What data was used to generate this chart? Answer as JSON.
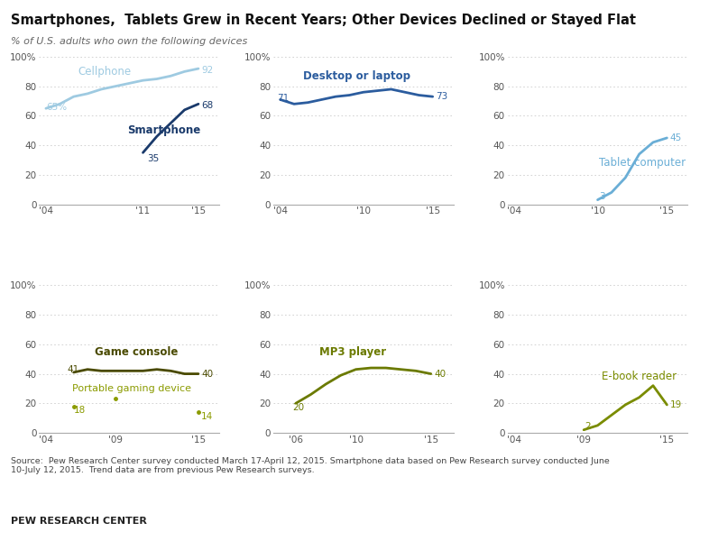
{
  "title": "Smartphones,  Tablets Grew in Recent Years; Other Devices Declined or Stayed Flat",
  "subtitle": "% of U.S. adults who own the following devices",
  "source_text": "Source:  Pew Research Center survey conducted March 17-April 12, 2015. Smartphone data based on Pew Research survey conducted June\n10-July 12, 2015.  Trend data are from previous Pew Research surveys.",
  "brand": "PEW RESEARCH CENTER",
  "cellphone": {
    "years": [
      2004,
      2005,
      2006,
      2007,
      2008,
      2009,
      2010,
      2011,
      2012,
      2013,
      2014,
      2015
    ],
    "values": [
      65,
      68,
      73,
      75,
      78,
      80,
      82,
      84,
      85,
      87,
      90,
      92
    ],
    "color": "#9ecae1",
    "label": "Cellphone"
  },
  "smartphone": {
    "years": [
      2011,
      2012,
      2013,
      2014,
      2015
    ],
    "values": [
      35,
      46,
      55,
      64,
      68
    ],
    "color": "#1a3a6b",
    "label": "Smartphone"
  },
  "desktop": {
    "years": [
      2004,
      2005,
      2006,
      2007,
      2008,
      2009,
      2010,
      2011,
      2012,
      2013,
      2014,
      2015
    ],
    "values": [
      71,
      68,
      69,
      71,
      73,
      74,
      76,
      77,
      78,
      76,
      74,
      73
    ],
    "color": "#2b5c9e",
    "label": "Desktop or laptop"
  },
  "tablet": {
    "years": [
      2010,
      2011,
      2012,
      2013,
      2014,
      2015
    ],
    "values": [
      3,
      8,
      18,
      34,
      42,
      45
    ],
    "color": "#6aaed6",
    "label": "Tablet computer"
  },
  "game_console": {
    "years": [
      2006,
      2007,
      2008,
      2009,
      2010,
      2011,
      2012,
      2013,
      2014,
      2015
    ],
    "values": [
      41,
      43,
      42,
      42,
      42,
      42,
      43,
      42,
      40,
      40
    ],
    "color": "#4a4a00",
    "label": "Game console"
  },
  "portable_gaming": {
    "years": [
      2006,
      2009,
      2015
    ],
    "values": [
      18,
      23,
      14
    ],
    "color": "#8b9b00",
    "label": "Portable gaming device"
  },
  "mp3": {
    "years": [
      2006,
      2007,
      2008,
      2009,
      2010,
      2011,
      2012,
      2013,
      2014,
      2015
    ],
    "values": [
      20,
      26,
      33,
      39,
      43,
      44,
      44,
      43,
      42,
      40
    ],
    "color": "#6b7a00",
    "label": "MP3 player"
  },
  "ebook": {
    "years": [
      2009,
      2010,
      2011,
      2012,
      2013,
      2014,
      2015
    ],
    "values": [
      2,
      5,
      12,
      19,
      24,
      32,
      19
    ],
    "color": "#7a8c00",
    "label": "E-book reader"
  },
  "light_blue": "#9ecae1",
  "dark_blue": "#1a3a6b",
  "medium_blue": "#2b5c9e",
  "tablet_blue": "#6aaed6",
  "dark_olive": "#4a4a00",
  "olive_green": "#8b9b00",
  "mp3_color": "#6b7a00",
  "ebook_color": "#7a8c00",
  "grid_color": "#cccccc",
  "bg_color": "#ffffff",
  "title_color": "#111111",
  "subtitle_color": "#666666"
}
